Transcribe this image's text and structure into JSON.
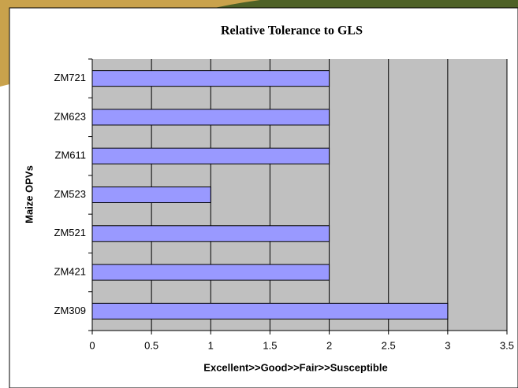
{
  "chart_data": {
    "type": "barh",
    "title": "Relative Tolerance to GLS",
    "x_label": "Excellent>>Good>>Fair>>Susceptible",
    "y_label": "Maize OPVs",
    "categories": [
      "ZM721",
      "ZM623",
      "ZM611",
      "ZM523",
      "ZM521",
      "ZM421",
      "ZM309"
    ],
    "values": [
      2,
      2,
      2,
      1,
      2,
      2,
      3
    ],
    "color": "#9999ff",
    "xlim": [
      0,
      3.5
    ],
    "xticks": [
      0,
      0.5,
      1,
      1.5,
      2,
      2.5,
      3,
      3.5
    ],
    "grid": true
  }
}
